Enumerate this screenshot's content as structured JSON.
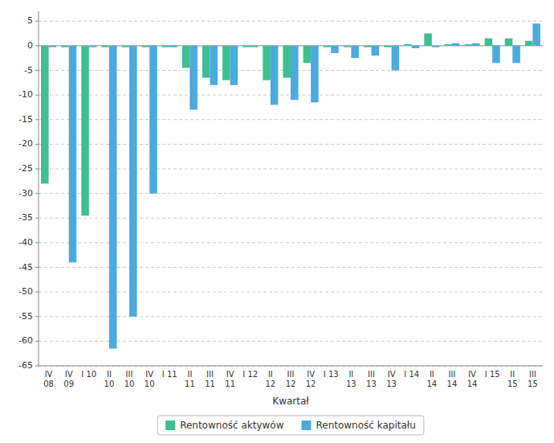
{
  "chart_data": {
    "type": "bar",
    "xlabel": "Kwartał",
    "categories": [
      "IV\n08",
      "IV\n09",
      "I 10",
      "II\n10",
      "III\n10",
      "IV\n10",
      "I 11",
      "II\n11",
      "III\n11",
      "IV\n11",
      "I 12",
      "II\n12",
      "III\n12",
      "IV\n12",
      "I 13",
      "II\n13",
      "III\n13",
      "IV\n13",
      "I 14",
      "II\n14",
      "III\n14",
      "IV\n14",
      "I 15",
      "II\n15",
      "III\n15"
    ],
    "series": [
      {
        "name": "Rentowność aktywów",
        "color": "#3dbf94",
        "values": [
          -28.0,
          -0.3,
          -34.5,
          -0.3,
          -0.3,
          -0.3,
          -0.3,
          -4.5,
          -6.5,
          -7.0,
          -0.3,
          -7.0,
          -6.5,
          -3.5,
          -0.3,
          -0.3,
          -0.3,
          -0.3,
          0.3,
          2.5,
          0.3,
          0.3,
          1.5,
          1.5,
          1.0
        ]
      },
      {
        "name": "Rentowność kapitału",
        "color": "#4baade",
        "values": [
          -0.3,
          -44.0,
          -0.3,
          -61.5,
          -55.0,
          -30.0,
          -0.3,
          -13.0,
          -8.0,
          -8.0,
          -0.3,
          -12.0,
          -11.0,
          -11.5,
          -1.5,
          -2.5,
          -2.0,
          -5.0,
          -0.5,
          -0.3,
          0.5,
          0.5,
          -3.5,
          -3.5,
          4.5
        ]
      }
    ],
    "ylim": [
      -65,
      7
    ],
    "yticks": [
      -65,
      -60,
      -55,
      -50,
      -45,
      -40,
      -35,
      -30,
      -25,
      -20,
      -15,
      -10,
      -5,
      0,
      5
    ],
    "grid": true,
    "legend": "bottom"
  }
}
